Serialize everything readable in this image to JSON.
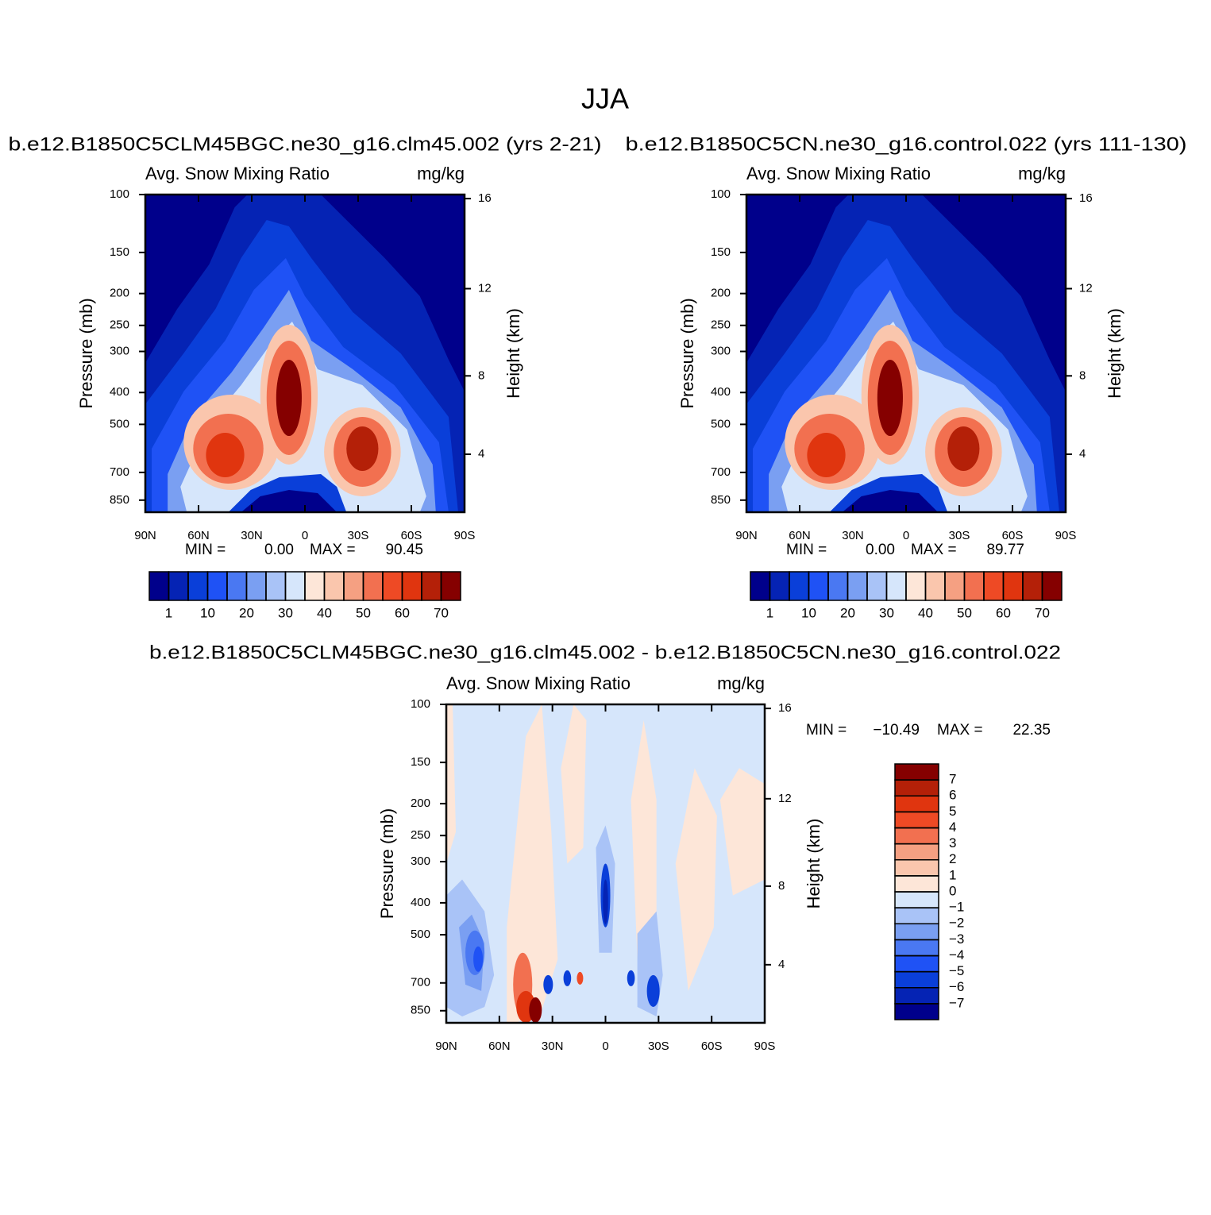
{
  "title": "JJA",
  "chart_data": [
    {
      "type": "contour",
      "title": "b.e12.B1850C5CLM45BGC.ne30_g16.clm45.002 (yrs 2-21)",
      "left_string": "Avg. Snow Mixing Ratio",
      "right_string": "mg/kg",
      "ylabel": "Pressure (mb)",
      "y2label": "Height (km)",
      "xlim": [
        90,
        -90
      ],
      "xticks": [
        {
          "value": 90,
          "label": "90N"
        },
        {
          "value": 60,
          "label": "60N"
        },
        {
          "value": 30,
          "label": "30N"
        },
        0,
        {
          "value": -30,
          "label": "30S"
        },
        {
          "value": -60,
          "label": "60S"
        },
        {
          "value": -90,
          "label": "90S"
        }
      ],
      "ylim": [
        925,
        100
      ],
      "ylog": true,
      "yticks": [
        100,
        150,
        200,
        250,
        300,
        400,
        500,
        700,
        850
      ],
      "y2ticks": [
        4,
        8,
        12,
        16
      ],
      "stats": {
        "names": [
          "MIN =",
          "MAX ="
        ],
        "values": [
          0,
          90.45
        ],
        "value_labels": [
          "0.00",
          "90.45"
        ]
      },
      "colorbar": {
        "orientation": "horizontal",
        "levels": [
          1,
          5,
          10,
          15,
          20,
          25,
          30,
          35,
          40,
          45,
          50,
          55,
          60,
          65,
          70
        ],
        "ticks": [
          1,
          10,
          20,
          30,
          40,
          50,
          60,
          70
        ],
        "colors": [
          "#00008b",
          "#0523b4",
          "#0a3fd9",
          "#1f52f5",
          "#4a78f2",
          "#7a9ff2",
          "#a9c3f7",
          "#d6e6fb",
          "#fde6d8",
          "#fac6ad",
          "#f5a082",
          "#f27050",
          "#ee4a25",
          "#e0350f",
          "#b42008",
          "#850000"
        ]
      }
    },
    {
      "type": "contour",
      "title": "b.e12.B1850C5CN.ne30_g16.control.022 (yrs 111-130)",
      "left_string": "Avg. Snow Mixing Ratio",
      "right_string": "mg/kg",
      "ylabel": "Pressure (mb)",
      "y2label": "Height (km)",
      "xlim": [
        90,
        -90
      ],
      "xticks": [
        {
          "value": 90,
          "label": "90N"
        },
        {
          "value": 60,
          "label": "60N"
        },
        {
          "value": 30,
          "label": "30N"
        },
        0,
        {
          "value": -30,
          "label": "30S"
        },
        {
          "value": -60,
          "label": "60S"
        },
        {
          "value": -90,
          "label": "90S"
        }
      ],
      "ylim": [
        925,
        100
      ],
      "ylog": true,
      "yticks": [
        100,
        150,
        200,
        250,
        300,
        400,
        500,
        700,
        850
      ],
      "y2ticks": [
        4,
        8,
        12,
        16
      ],
      "stats": {
        "names": [
          "MIN =",
          "MAX ="
        ],
        "values": [
          0,
          89.77
        ],
        "value_labels": [
          "0.00",
          "89.77"
        ]
      },
      "colorbar": {
        "orientation": "horizontal",
        "levels": [
          1,
          5,
          10,
          15,
          20,
          25,
          30,
          35,
          40,
          45,
          50,
          55,
          60,
          65,
          70
        ],
        "ticks": [
          1,
          10,
          20,
          30,
          40,
          50,
          60,
          70
        ],
        "colors": [
          "#00008b",
          "#0523b4",
          "#0a3fd9",
          "#1f52f5",
          "#4a78f2",
          "#7a9ff2",
          "#a9c3f7",
          "#d6e6fb",
          "#fde6d8",
          "#fac6ad",
          "#f5a082",
          "#f27050",
          "#ee4a25",
          "#e0350f",
          "#b42008",
          "#850000"
        ]
      }
    },
    {
      "type": "contour",
      "title": "b.e12.B1850C5CLM45BGC.ne30_g16.clm45.002 - b.e12.B1850C5CN.ne30_g16.control.022",
      "left_string": "Avg. Snow Mixing Ratio",
      "right_string": "mg/kg",
      "ylabel": "Pressure (mb)",
      "y2label": "Height (km)",
      "xlim": [
        90,
        -90
      ],
      "xticks": [
        {
          "value": 90,
          "label": "90N"
        },
        {
          "value": 60,
          "label": "60N"
        },
        {
          "value": 30,
          "label": "30N"
        },
        0,
        {
          "value": -30,
          "label": "30S"
        },
        {
          "value": -60,
          "label": "60S"
        },
        {
          "value": -90,
          "label": "90S"
        }
      ],
      "ylim": [
        925,
        100
      ],
      "ylog": true,
      "yticks": [
        100,
        150,
        200,
        250,
        300,
        400,
        500,
        700,
        850
      ],
      "y2ticks": [
        4,
        8,
        12,
        16
      ],
      "stats": {
        "names": [
          "MIN =",
          "MAX ="
        ],
        "values": [
          -10.49,
          22.35
        ],
        "value_labels": [
          "−10.49",
          "22.35"
        ]
      },
      "colorbar": {
        "orientation": "vertical",
        "levels": [
          -7,
          -6,
          -5,
          -4,
          -3,
          -2,
          -1,
          0,
          1,
          2,
          3,
          4,
          5,
          6,
          7
        ],
        "ticks": [
          {
            "value": -7,
            "label": "−7"
          },
          {
            "value": -6,
            "label": "−6"
          },
          {
            "value": -5,
            "label": "−5"
          },
          {
            "value": -4,
            "label": "−4"
          },
          {
            "value": -3,
            "label": "−3"
          },
          {
            "value": -2,
            "label": "−2"
          },
          {
            "value": -1,
            "label": "−1"
          },
          0,
          1,
          2,
          3,
          4,
          5,
          6,
          7
        ],
        "colors": [
          "#00008b",
          "#0523b4",
          "#0a3fd9",
          "#1f52f5",
          "#4a78f2",
          "#7a9ff2",
          "#a9c3f7",
          "#d6e6fb",
          "#fde6d8",
          "#fac6ad",
          "#f5a082",
          "#f27050",
          "#ee4a25",
          "#e0350f",
          "#b42008",
          "#850000"
        ]
      }
    }
  ]
}
